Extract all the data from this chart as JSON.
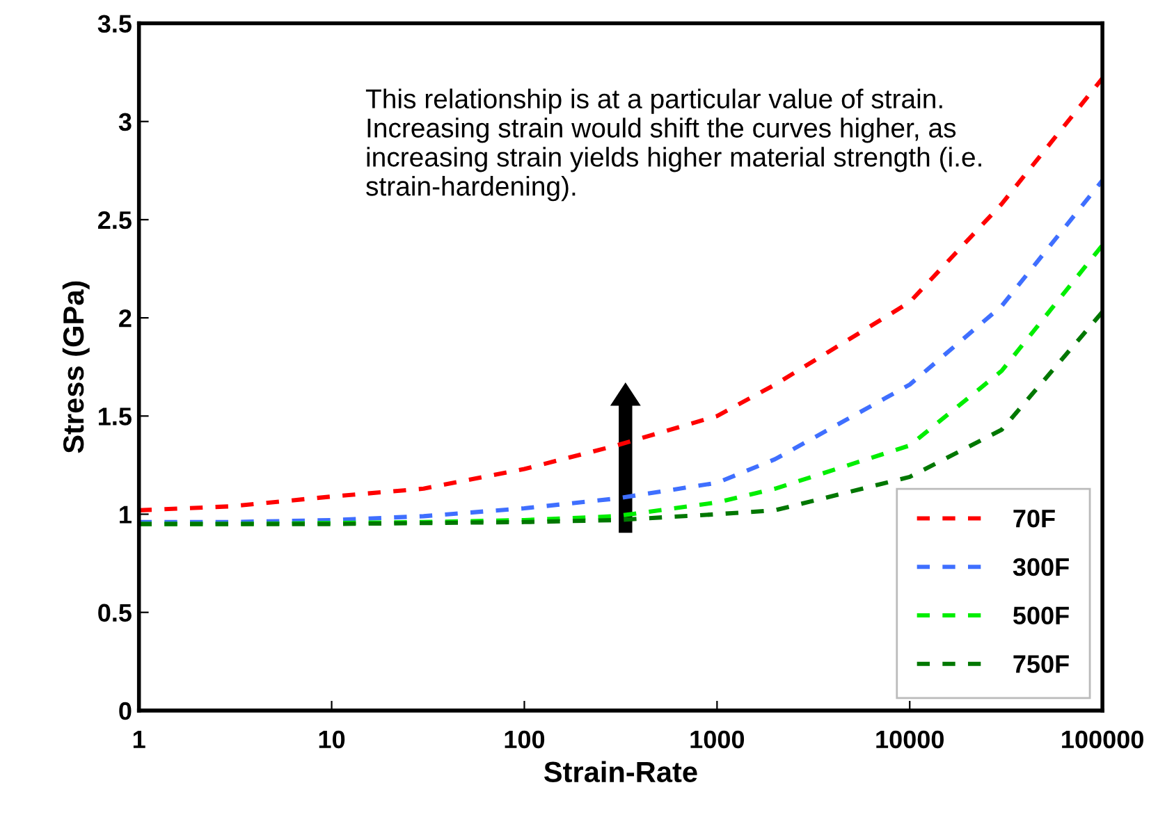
{
  "chart_data": {
    "type": "line",
    "xlabel": "Strain-Rate",
    "ylabel": "Stress (GPa)",
    "x": [
      1,
      3,
      10,
      30,
      100,
      300,
      1000,
      2000,
      10000,
      30000,
      100000
    ],
    "series": [
      {
        "name": "70F",
        "color": "#ff0000",
        "values": [
          1.02,
          1.04,
          1.09,
          1.13,
          1.23,
          1.35,
          1.5,
          1.66,
          2.08,
          2.58,
          3.22
        ]
      },
      {
        "name": "300F",
        "color": "#3f6fff",
        "values": [
          0.96,
          0.96,
          0.97,
          0.99,
          1.03,
          1.08,
          1.16,
          1.28,
          1.66,
          2.06,
          2.7
        ]
      },
      {
        "name": "500F",
        "color": "#00ee00",
        "values": [
          0.95,
          0.95,
          0.955,
          0.96,
          0.97,
          0.99,
          1.06,
          1.13,
          1.35,
          1.73,
          2.37
        ]
      },
      {
        "name": "750F",
        "color": "#007700",
        "values": [
          0.95,
          0.95,
          0.95,
          0.955,
          0.96,
          0.97,
          1.0,
          1.02,
          1.19,
          1.43,
          2.03
        ]
      }
    ],
    "log": "x",
    "xlim": [
      1,
      100000
    ],
    "xticks": [
      1,
      10,
      100,
      1000,
      10000,
      100000
    ],
    "ylim": [
      0,
      3.5
    ],
    "yticks": [
      0,
      0.5,
      1,
      1.5,
      2,
      2.5,
      3,
      3.5
    ],
    "grid": false,
    "legend": "bottom right",
    "marker": "none",
    "line_style": "dashed",
    "annotations": [
      "This relationship is at a particular value of strain. Increasing strain would shift the curves higher, as increasing strain yields higher material strength (i.e. strain-hardening)."
    ]
  }
}
